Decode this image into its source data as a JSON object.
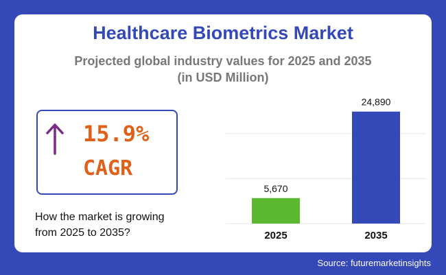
{
  "header": {
    "title": "Healthcare Biometrics Market",
    "subtitle_line1": "Projected global industry values for 2025 and 2035",
    "subtitle_line2": "(in USD Million)"
  },
  "cagr": {
    "value": "15.9%",
    "label": "CAGR",
    "arrow_icon": "arrow-up-icon"
  },
  "question": {
    "line1": "How the market is growing",
    "line2": "from 2025 to 2035?"
  },
  "source": "Source: futuremarketinsights",
  "colors": {
    "background": "#3448b8",
    "title": "#3448b8",
    "cagr": "#e0601a",
    "arrow": "#7b2a8c",
    "bar_2025": "#5cb82e",
    "bar_2035": "#3448b8"
  },
  "chart_data": {
    "type": "bar",
    "categories": [
      "2025",
      "2035"
    ],
    "values": [
      5670,
      24890
    ],
    "data_labels": [
      "5,670",
      "24,890"
    ],
    "ylim": [
      0,
      25000
    ],
    "grid": true,
    "bar_colors": [
      "#5cb82e",
      "#3448b8"
    ]
  }
}
